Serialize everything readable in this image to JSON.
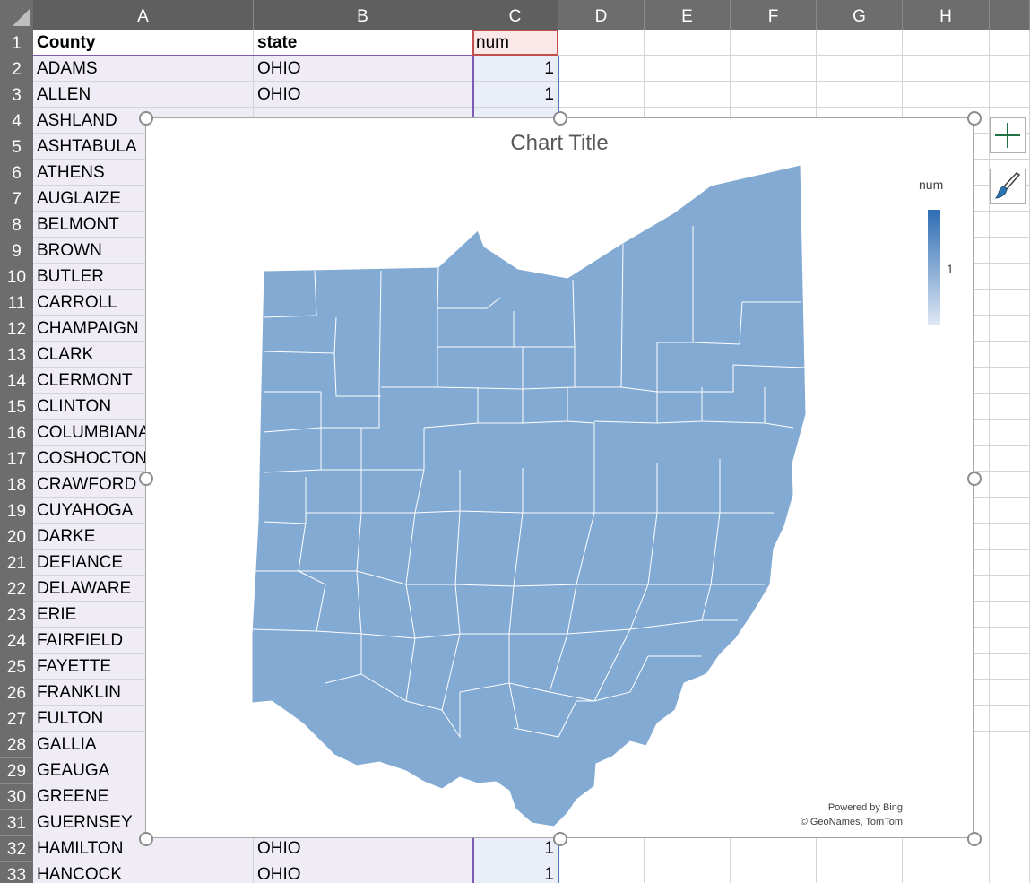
{
  "columns": [
    "A",
    "B",
    "C",
    "D",
    "E",
    "F",
    "G",
    "H"
  ],
  "rows": [
    {
      "n": "1",
      "county": "County",
      "state": "state",
      "num": "num"
    },
    {
      "n": "2",
      "county": "ADAMS",
      "state": "OHIO",
      "num": "1"
    },
    {
      "n": "3",
      "county": "ALLEN",
      "state": "OHIO",
      "num": "1"
    },
    {
      "n": "4",
      "county": "ASHLAND",
      "state": "",
      "num": ""
    },
    {
      "n": "5",
      "county": "ASHTABULA",
      "state": "",
      "num": ""
    },
    {
      "n": "6",
      "county": "ATHENS",
      "state": "",
      "num": ""
    },
    {
      "n": "7",
      "county": "AUGLAIZE",
      "state": "",
      "num": ""
    },
    {
      "n": "8",
      "county": "BELMONT",
      "state": "",
      "num": ""
    },
    {
      "n": "9",
      "county": "BROWN",
      "state": "",
      "num": ""
    },
    {
      "n": "10",
      "county": "BUTLER",
      "state": "",
      "num": ""
    },
    {
      "n": "11",
      "county": "CARROLL",
      "state": "",
      "num": ""
    },
    {
      "n": "12",
      "county": "CHAMPAIGN",
      "state": "",
      "num": ""
    },
    {
      "n": "13",
      "county": "CLARK",
      "state": "",
      "num": ""
    },
    {
      "n": "14",
      "county": "CLERMONT",
      "state": "",
      "num": ""
    },
    {
      "n": "15",
      "county": "CLINTON",
      "state": "",
      "num": ""
    },
    {
      "n": "16",
      "county": "COLUMBIANA",
      "state": "",
      "num": ""
    },
    {
      "n": "17",
      "county": "COSHOCTON",
      "state": "",
      "num": ""
    },
    {
      "n": "18",
      "county": "CRAWFORD",
      "state": "",
      "num": ""
    },
    {
      "n": "19",
      "county": "CUYAHOGA",
      "state": "",
      "num": ""
    },
    {
      "n": "20",
      "county": "DARKE",
      "state": "",
      "num": ""
    },
    {
      "n": "21",
      "county": "DEFIANCE",
      "state": "",
      "num": ""
    },
    {
      "n": "22",
      "county": "DELAWARE",
      "state": "",
      "num": ""
    },
    {
      "n": "23",
      "county": "ERIE",
      "state": "",
      "num": ""
    },
    {
      "n": "24",
      "county": "FAIRFIELD",
      "state": "",
      "num": ""
    },
    {
      "n": "25",
      "county": "FAYETTE",
      "state": "",
      "num": ""
    },
    {
      "n": "26",
      "county": "FRANKLIN",
      "state": "",
      "num": ""
    },
    {
      "n": "27",
      "county": "FULTON",
      "state": "",
      "num": ""
    },
    {
      "n": "28",
      "county": "GALLIA",
      "state": "",
      "num": ""
    },
    {
      "n": "29",
      "county": "GEAUGA",
      "state": "",
      "num": ""
    },
    {
      "n": "30",
      "county": "GREENE",
      "state": "",
      "num": ""
    },
    {
      "n": "31",
      "county": "GUERNSEY",
      "state": "",
      "num": ""
    },
    {
      "n": "32",
      "county": "HAMILTON",
      "state": "OHIO",
      "num": "1"
    },
    {
      "n": "33",
      "county": "HANCOCK",
      "state": "OHIO",
      "num": "1"
    }
  ],
  "chart": {
    "title": "Chart Title",
    "legend_title": "num",
    "legend_value": "1",
    "credit_line1": "Powered by Bing",
    "credit_line2": "© GeoNames, TomTom",
    "fill_color": "#82aad3",
    "border_color": "#ffffff",
    "legend_high_color": "#2e6db4",
    "legend_low_color": "#dde7f3"
  },
  "side_buttons": {
    "add_element_icon": "plus-icon",
    "style_icon": "paintbrush-icon"
  }
}
